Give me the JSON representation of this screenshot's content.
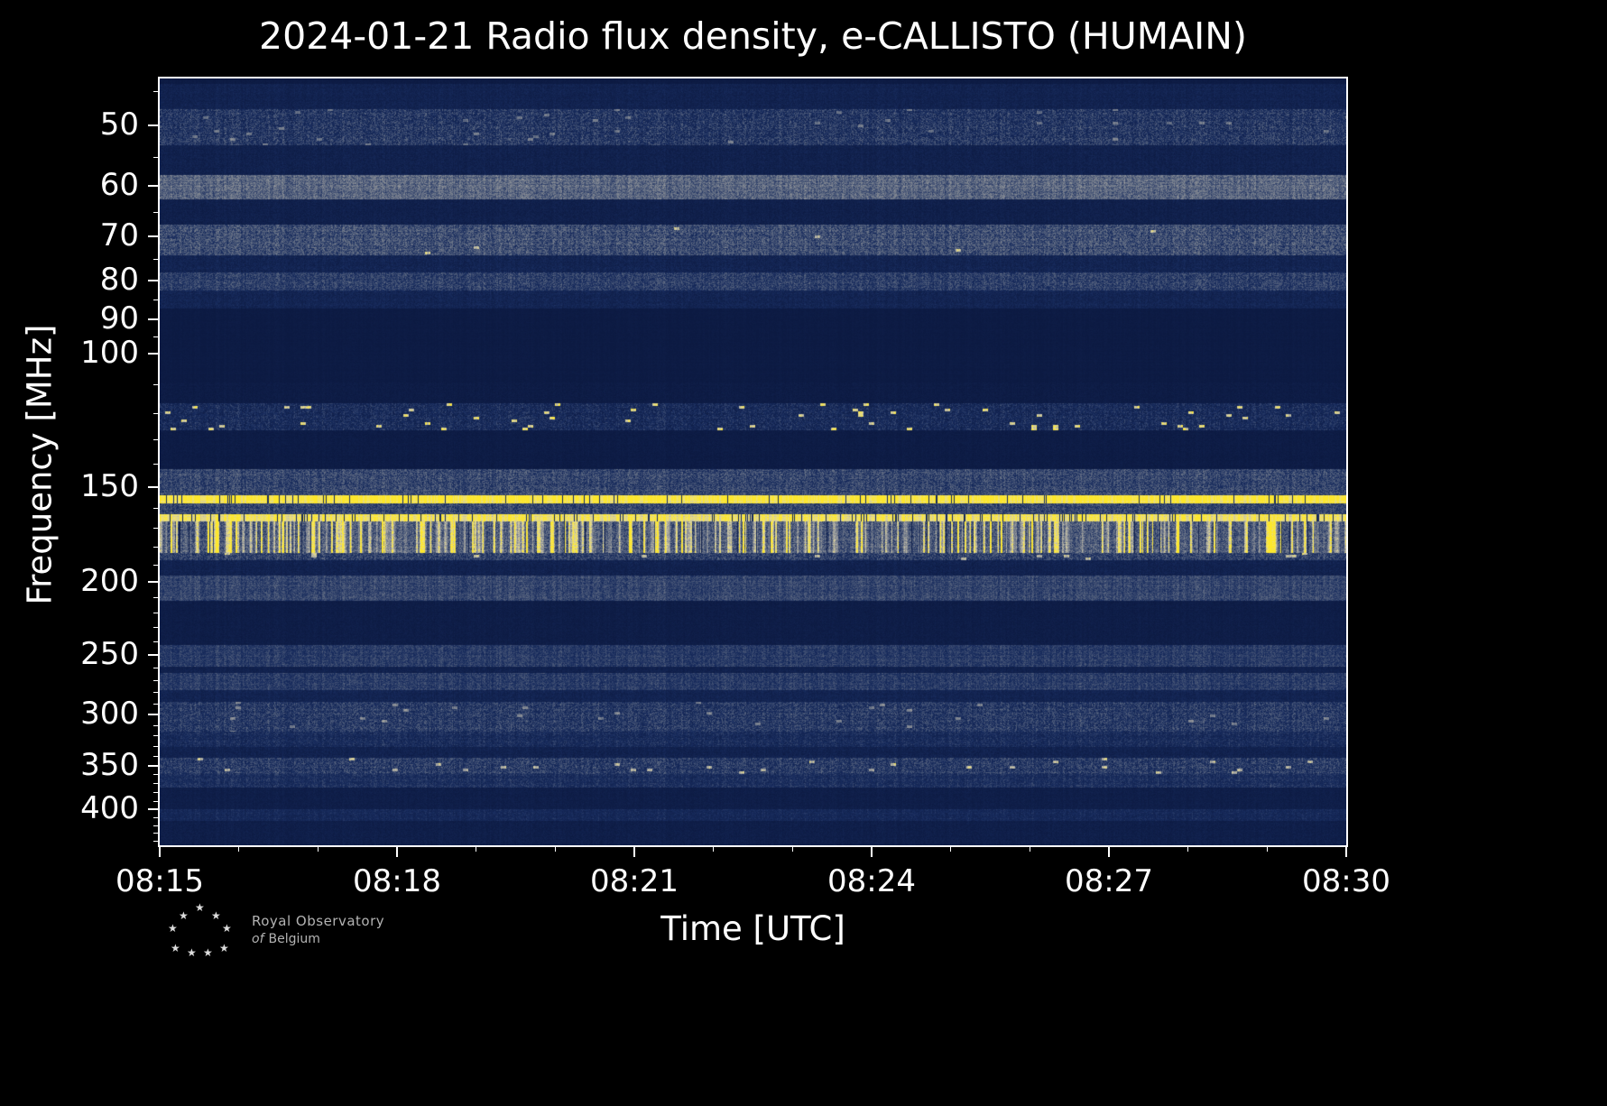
{
  "title": "2024-01-21 Radio flux density, e-CALLISTO (HUMAIN)",
  "chart_data": {
    "type": "heatmap",
    "title": "2024-01-21 Radio flux density, e-CALLISTO (HUMAIN)",
    "xlabel": "Time [UTC]",
    "ylabel": "Frequency [MHz]",
    "x_ticks": [
      "08:15",
      "08:18",
      "08:21",
      "08:24",
      "08:27",
      "08:30"
    ],
    "x_total_minutes": 15,
    "x_major_interval_min": 3,
    "x_minor_interval_min": 1,
    "y_scale": "log",
    "y_range_mhz": [
      43.3,
      446
    ],
    "y_ticks": [
      50,
      60,
      70,
      80,
      90,
      100,
      150,
      200,
      250,
      300,
      350,
      400
    ],
    "y_minor_ticks": [
      45,
      55,
      65,
      75,
      85,
      95,
      110,
      120,
      130,
      140,
      160,
      170,
      180,
      190,
      210,
      220,
      230,
      240,
      260,
      270,
      280,
      290,
      310,
      320,
      330,
      340,
      360,
      370,
      380,
      390,
      410,
      420,
      430,
      440
    ],
    "grid": false,
    "legend": "none",
    "background_intensity": 0.055,
    "background_noise": 0.04,
    "colormap": [
      [
        0.0,
        9,
        21,
        58
      ],
      [
        0.22,
        24,
        44,
        94
      ],
      [
        0.45,
        105,
        115,
        135
      ],
      [
        0.62,
        150,
        152,
        155
      ],
      [
        0.78,
        205,
        200,
        168
      ],
      [
        0.9,
        242,
        228,
        110
      ],
      [
        1.0,
        253,
        231,
        44
      ]
    ],
    "bands": [
      {
        "lo": 44.0,
        "hi": 47.5,
        "base": 0.11,
        "noise": 0.1
      },
      {
        "lo": 47.5,
        "hi": 53.0,
        "base": 0.2,
        "noise": 0.25,
        "sp": 0.012,
        "sg": 0.55
      },
      {
        "lo": 53.0,
        "hi": 58.0,
        "base": 0.1,
        "noise": 0.1
      },
      {
        "lo": 58.0,
        "hi": 62.5,
        "base": 0.36,
        "noise": 0.25
      },
      {
        "lo": 62.5,
        "hi": 67.5,
        "base": 0.09,
        "noise": 0.09
      },
      {
        "lo": 67.5,
        "hi": 74.0,
        "base": 0.28,
        "noise": 0.25,
        "sp": 0.003,
        "sg": 0.85
      },
      {
        "lo": 74.0,
        "hi": 78.0,
        "base": 0.12,
        "noise": 0.12
      },
      {
        "lo": 78.0,
        "hi": 82.5,
        "base": 0.24,
        "noise": 0.2
      },
      {
        "lo": 82.5,
        "hi": 87.0,
        "base": 0.13,
        "noise": 0.12
      },
      {
        "lo": 87.0,
        "hi": 109.0,
        "base": 0.055,
        "noise": 0.03
      },
      {
        "lo": 109.0,
        "hi": 116.0,
        "base": 0.06,
        "noise": 0.05
      },
      {
        "lo": 116.0,
        "hi": 126.0,
        "base": 0.16,
        "noise": 0.2,
        "sp": 0.03,
        "sg": 0.95
      },
      {
        "lo": 126.0,
        "hi": 142.0,
        "base": 0.06,
        "noise": 0.05
      },
      {
        "lo": 142.0,
        "hi": 153.5,
        "base": 0.26,
        "noise": 0.22
      },
      {
        "lo": 153.5,
        "hi": 157.5,
        "base": 0.96,
        "noise": 0.05,
        "gaps": 0.05
      },
      {
        "lo": 157.5,
        "hi": 162.5,
        "base": 0.26,
        "noise": 0.2
      },
      {
        "lo": 162.5,
        "hi": 166.5,
        "base": 0.88,
        "noise": 0.1,
        "gaps": 0.1
      },
      {
        "lo": 166.5,
        "hi": 183.0,
        "base": 0.32,
        "noise": 0.26,
        "streaks": true
      },
      {
        "lo": 183.0,
        "hi": 187.0,
        "base": 0.24,
        "noise": 0.24,
        "sp": 0.02,
        "sg": 0.85
      },
      {
        "lo": 187.0,
        "hi": 196.0,
        "base": 0.11,
        "noise": 0.1
      },
      {
        "lo": 196.0,
        "hi": 212.0,
        "base": 0.27,
        "noise": 0.16
      },
      {
        "lo": 212.0,
        "hi": 242.0,
        "base": 0.07,
        "noise": 0.06
      },
      {
        "lo": 242.0,
        "hi": 259.0,
        "base": 0.24,
        "noise": 0.15
      },
      {
        "lo": 259.0,
        "hi": 264.0,
        "base": 0.1,
        "noise": 0.08
      },
      {
        "lo": 264.0,
        "hi": 278.0,
        "base": 0.24,
        "noise": 0.15
      },
      {
        "lo": 278.0,
        "hi": 288.0,
        "base": 0.12,
        "noise": 0.1
      },
      {
        "lo": 288.0,
        "hi": 315.0,
        "base": 0.22,
        "noise": 0.22,
        "sp": 0.012,
        "sg": 0.6
      },
      {
        "lo": 315.0,
        "hi": 330.0,
        "base": 0.17,
        "noise": 0.16
      },
      {
        "lo": 330.0,
        "hi": 341.0,
        "base": 0.11,
        "noise": 0.1
      },
      {
        "lo": 341.0,
        "hi": 359.0,
        "base": 0.22,
        "noise": 0.22,
        "sp": 0.015,
        "sg": 0.8
      },
      {
        "lo": 359.0,
        "hi": 374.0,
        "base": 0.19,
        "noise": 0.15
      },
      {
        "lo": 374.0,
        "hi": 399.0,
        "base": 0.08,
        "noise": 0.06
      },
      {
        "lo": 399.0,
        "hi": 414.0,
        "base": 0.16,
        "noise": 0.12
      },
      {
        "lo": 414.0,
        "hi": 446.0,
        "base": 0.08,
        "noise": 0.07
      }
    ]
  },
  "logo": {
    "line1": "Royal Observatory",
    "of": "of",
    "line2": "Belgium",
    "star_glyph": "★",
    "star_count": 9
  }
}
